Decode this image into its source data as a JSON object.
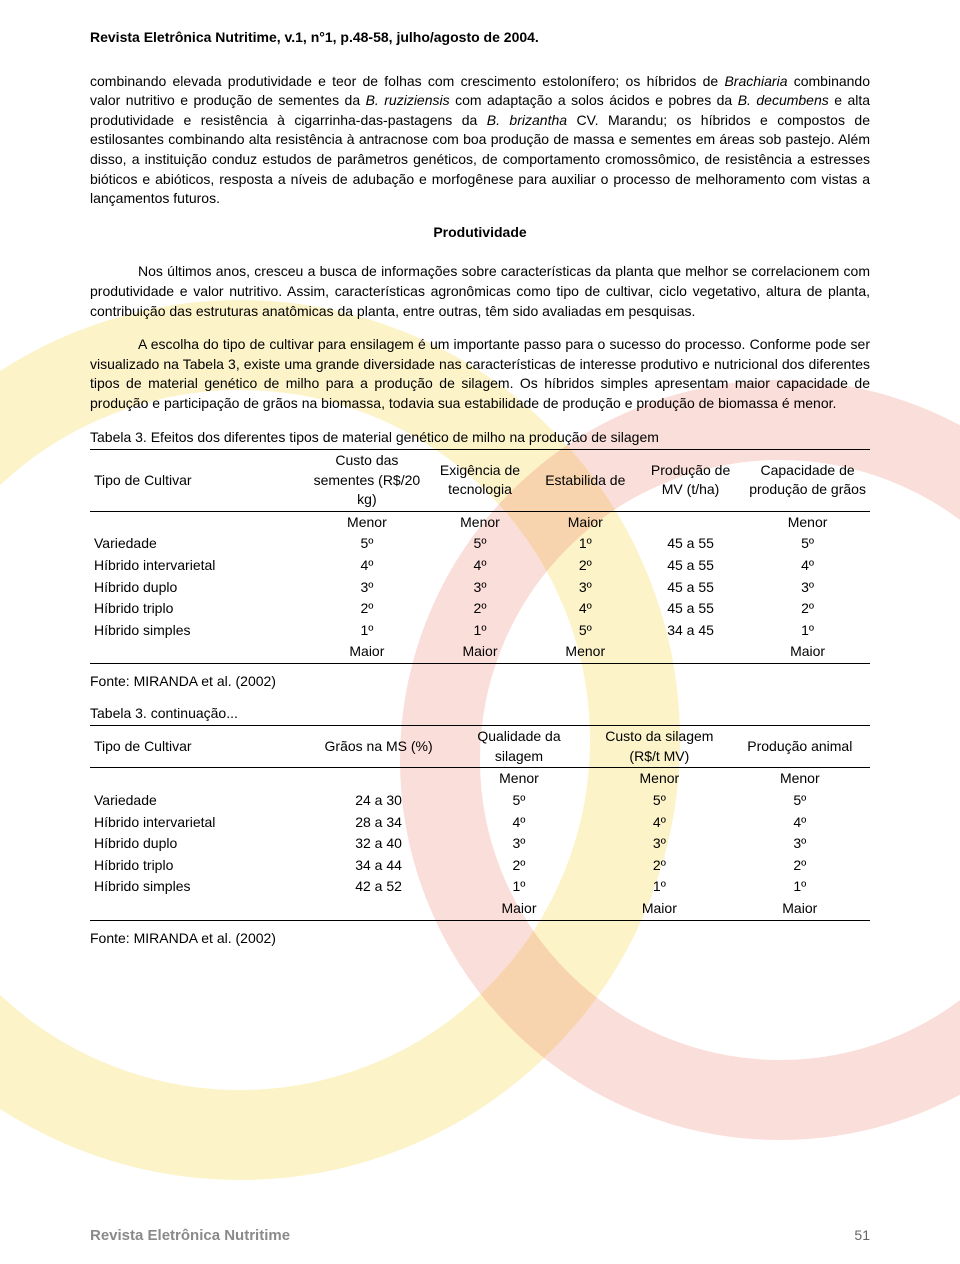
{
  "header": {
    "journal_line": "Revista Eletrônica Nutritime, v.1, n°1, p.48-58, julho/agosto de 2004."
  },
  "body": {
    "para1_html": "combinando elevada produtividade e teor de folhas com crescimento estolonífero; os híbridos de <i>Brachiaria</i> combinando valor nutritivo e produção de sementes da <i>B. ruziziensis</i> com adaptação a solos ácidos e pobres da <i>B. decumbens</i> e alta produtividade e resistência à cigarrinha-das-pastagens da <i>B. brizantha</i> CV. Marandu; os híbridos e compostos de estilosantes combinando alta resistência à antracnose com boa produção de massa e sementes em áreas sob pastejo. Além disso, a instituição conduz estudos de parâmetros genéticos, de comportamento cromossômico, de resistência a estresses bióticos e abióticos, resposta a níveis de adubação e morfogênese para auxiliar o processo de melhoramento com vistas a lançamentos futuros.",
    "section_heading": "Produtividade",
    "para2": "Nos últimos anos, cresceu a busca de informações sobre características da planta que melhor se correlacionem com produtividade e valor nutritivo. Assim, características agronômicas como tipo de cultivar, ciclo vegetativo, altura de planta, contribuição das estruturas anatômicas da planta, entre outras, têm sido avaliadas em pesquisas.",
    "para3": "A escolha do tipo de cultivar para ensilagem é um importante passo para o sucesso do processo. Conforme pode ser visualizado na Tabela 3, existe uma grande diversidade nas características de interesse produtivo e nutricional dos diferentes tipos de material genético de milho para a produção de silagem. Os híbridos simples apresentam maior capacidade de produção e participação de grãos na biomassa, todavia sua estabilidade de produção e produção de biomassa é menor."
  },
  "table3a": {
    "caption": "Tabela 3. Efeitos dos diferentes tipos de material genético de milho na produção de silagem",
    "columns": [
      "Tipo de Cultivar",
      "Custo das sementes (R$/20 kg)",
      "Exigência de tecnologia",
      "Estabilida de",
      "Produção de MV (t/ha)",
      "Capacidade de produção de grãos"
    ],
    "top_labels": [
      "",
      "Menor",
      "Menor",
      "Maior",
      "",
      "Menor"
    ],
    "rows": [
      [
        "Variedade",
        "5º",
        "5º",
        "1º",
        "45 a 55",
        "5º"
      ],
      [
        "Híbrido intervarietal",
        "4º",
        "4º",
        "2º",
        "45 a 55",
        "4º"
      ],
      [
        "Híbrido duplo",
        "3º",
        "3º",
        "3º",
        "45 a 55",
        "3º"
      ],
      [
        "Híbrido triplo",
        "2º",
        "2º",
        "4º",
        "45 a 55",
        "2º"
      ],
      [
        "Híbrido simples",
        "1º",
        "1º",
        "5º",
        "34 a 45",
        "1º"
      ]
    ],
    "bot_labels": [
      "",
      "Maior",
      "Maior",
      "Menor",
      "",
      "Maior"
    ],
    "source": "Fonte: MIRANDA et al. (2002)"
  },
  "table3b": {
    "caption": "Tabela 3. continuação...",
    "columns": [
      "Tipo de Cultivar",
      "Grãos na MS (%)",
      "Qualidade da silagem",
      "Custo da silagem (R$/t MV)",
      "Produção animal"
    ],
    "top_labels": [
      "",
      "",
      "Menor",
      "Menor",
      "Menor"
    ],
    "rows": [
      [
        "Variedade",
        "24 a 30",
        "5º",
        "5º",
        "5º"
      ],
      [
        "Híbrido intervarietal",
        "28 a 34",
        "4º",
        "4º",
        "4º"
      ],
      [
        "Híbrido duplo",
        "32 a 40",
        "3º",
        "3º",
        "3º"
      ],
      [
        "Híbrido triplo",
        "34 a 44",
        "2º",
        "2º",
        "2º"
      ],
      [
        "Híbrido simples",
        "42 a 52",
        "1º",
        "1º",
        "1º"
      ]
    ],
    "bot_labels": [
      "",
      "",
      "Maior",
      "Maior",
      "Maior"
    ],
    "source": "Fonte: MIRANDA et al. (2002)"
  },
  "footer": {
    "title": "Revista Eletrônica Nutritime",
    "page": "51"
  },
  "style": {
    "col_widths_a": [
      "28%",
      "15%",
      "14%",
      "13%",
      "14%",
      "16%"
    ],
    "col_widths_b": [
      "28%",
      "18%",
      "18%",
      "18%",
      "18%"
    ]
  }
}
